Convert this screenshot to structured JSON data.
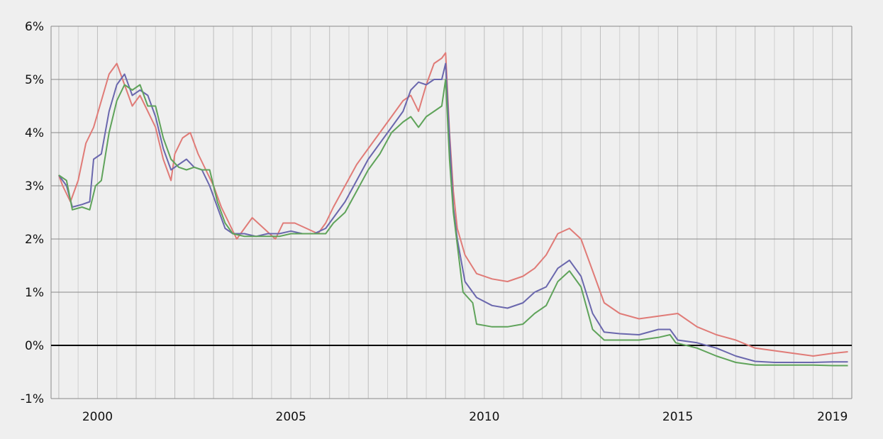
{
  "chart_data": {
    "type": "line",
    "title": "",
    "xlabel": "",
    "ylabel": "",
    "xlim": [
      1998.8,
      2019.5
    ],
    "ylim": [
      -1,
      6
    ],
    "y_ticks": [
      {
        "value": 6,
        "label": "6%"
      },
      {
        "value": 5,
        "label": "5%"
      },
      {
        "value": 4,
        "label": "4%"
      },
      {
        "value": 3,
        "label": "3%"
      },
      {
        "value": 2,
        "label": "2%"
      },
      {
        "value": 1,
        "label": "1%"
      },
      {
        "value": 0,
        "label": "0%"
      },
      {
        "value": -1,
        "label": "-1%"
      }
    ],
    "x_ticks": [
      {
        "value": 2000,
        "label": "2000"
      },
      {
        "value": 2005,
        "label": "2005"
      },
      {
        "value": 2010,
        "label": "2010"
      },
      {
        "value": 2015,
        "label": "2015"
      },
      {
        "value": 2019,
        "label": "2019"
      }
    ],
    "x_minor_gridlines": [
      1999,
      2000,
      2001,
      2002,
      2003,
      2004,
      2005,
      2006,
      2007,
      2008,
      2009,
      2010,
      2011,
      2012,
      2013,
      2014,
      2015,
      2016,
      2017,
      2018,
      2019
    ],
    "grid": true,
    "legend": "none",
    "zero_line_color": "#000000",
    "series": [
      {
        "color": "#e07b77",
        "points": [
          [
            1999.0,
            3.2
          ],
          [
            1999.1,
            3.0
          ],
          [
            1999.3,
            2.7
          ],
          [
            1999.5,
            3.1
          ],
          [
            1999.7,
            3.8
          ],
          [
            1999.9,
            4.1
          ],
          [
            2000.1,
            4.6
          ],
          [
            2000.3,
            5.1
          ],
          [
            2000.5,
            5.3
          ],
          [
            2000.7,
            4.9
          ],
          [
            2000.9,
            4.5
          ],
          [
            2001.1,
            4.7
          ],
          [
            2001.3,
            4.4
          ],
          [
            2001.5,
            4.1
          ],
          [
            2001.7,
            3.5
          ],
          [
            2001.9,
            3.1
          ],
          [
            2002.0,
            3.6
          ],
          [
            2002.2,
            3.9
          ],
          [
            2002.4,
            4.0
          ],
          [
            2002.6,
            3.6
          ],
          [
            2002.8,
            3.3
          ],
          [
            2003.0,
            3.0
          ],
          [
            2003.2,
            2.6
          ],
          [
            2003.4,
            2.3
          ],
          [
            2003.6,
            2.0
          ],
          [
            2003.8,
            2.2
          ],
          [
            2004.0,
            2.4
          ],
          [
            2004.3,
            2.2
          ],
          [
            2004.6,
            2.0
          ],
          [
            2004.8,
            2.3
          ],
          [
            2005.1,
            2.3
          ],
          [
            2005.4,
            2.2
          ],
          [
            2005.7,
            2.1
          ],
          [
            2005.9,
            2.3
          ],
          [
            2006.1,
            2.6
          ],
          [
            2006.4,
            3.0
          ],
          [
            2006.7,
            3.4
          ],
          [
            2007.0,
            3.7
          ],
          [
            2007.3,
            4.0
          ],
          [
            2007.6,
            4.3
          ],
          [
            2007.9,
            4.6
          ],
          [
            2008.1,
            4.7
          ],
          [
            2008.3,
            4.4
          ],
          [
            2008.5,
            4.9
          ],
          [
            2008.7,
            5.3
          ],
          [
            2008.9,
            5.4
          ],
          [
            2009.0,
            5.5
          ],
          [
            2009.1,
            4.0
          ],
          [
            2009.2,
            2.9
          ],
          [
            2009.3,
            2.2
          ],
          [
            2009.5,
            1.7
          ],
          [
            2009.8,
            1.35
          ],
          [
            2010.2,
            1.25
          ],
          [
            2010.6,
            1.2
          ],
          [
            2011.0,
            1.3
          ],
          [
            2011.3,
            1.45
          ],
          [
            2011.6,
            1.7
          ],
          [
            2011.9,
            2.1
          ],
          [
            2012.2,
            2.2
          ],
          [
            2012.5,
            2.0
          ],
          [
            2012.8,
            1.4
          ],
          [
            2013.1,
            0.8
          ],
          [
            2013.5,
            0.6
          ],
          [
            2014.0,
            0.5
          ],
          [
            2014.5,
            0.55
          ],
          [
            2015.0,
            0.6
          ],
          [
            2015.5,
            0.35
          ],
          [
            2016.0,
            0.2
          ],
          [
            2016.5,
            0.1
          ],
          [
            2017.0,
            -0.05
          ],
          [
            2017.5,
            -0.1
          ],
          [
            2018.0,
            -0.15
          ],
          [
            2018.5,
            -0.2
          ],
          [
            2019.0,
            -0.15
          ],
          [
            2019.4,
            -0.12
          ]
        ]
      },
      {
        "color": "#6a67ad",
        "points": [
          [
            1999.0,
            3.2
          ],
          [
            1999.2,
            3.0
          ],
          [
            1999.35,
            2.6
          ],
          [
            1999.6,
            2.65
          ],
          [
            1999.8,
            2.7
          ],
          [
            1999.9,
            3.5
          ],
          [
            2000.1,
            3.6
          ],
          [
            2000.3,
            4.4
          ],
          [
            2000.5,
            4.9
          ],
          [
            2000.7,
            5.1
          ],
          [
            2000.9,
            4.7
          ],
          [
            2001.1,
            4.8
          ],
          [
            2001.3,
            4.7
          ],
          [
            2001.5,
            4.3
          ],
          [
            2001.7,
            3.7
          ],
          [
            2001.9,
            3.3
          ],
          [
            2002.1,
            3.4
          ],
          [
            2002.3,
            3.5
          ],
          [
            2002.5,
            3.35
          ],
          [
            2002.7,
            3.3
          ],
          [
            2002.9,
            3.0
          ],
          [
            2003.1,
            2.6
          ],
          [
            2003.3,
            2.2
          ],
          [
            2003.5,
            2.1
          ],
          [
            2003.8,
            2.1
          ],
          [
            2004.1,
            2.05
          ],
          [
            2004.4,
            2.1
          ],
          [
            2004.7,
            2.1
          ],
          [
            2005.0,
            2.15
          ],
          [
            2005.3,
            2.1
          ],
          [
            2005.6,
            2.1
          ],
          [
            2005.9,
            2.2
          ],
          [
            2006.1,
            2.4
          ],
          [
            2006.4,
            2.7
          ],
          [
            2006.7,
            3.1
          ],
          [
            2007.0,
            3.5
          ],
          [
            2007.3,
            3.8
          ],
          [
            2007.6,
            4.1
          ],
          [
            2007.9,
            4.4
          ],
          [
            2008.1,
            4.8
          ],
          [
            2008.3,
            4.95
          ],
          [
            2008.5,
            4.9
          ],
          [
            2008.7,
            5.0
          ],
          [
            2008.9,
            5.0
          ],
          [
            2009.0,
            5.3
          ],
          [
            2009.1,
            3.9
          ],
          [
            2009.2,
            2.6
          ],
          [
            2009.3,
            2.0
          ],
          [
            2009.5,
            1.2
          ],
          [
            2009.8,
            0.9
          ],
          [
            2010.2,
            0.75
          ],
          [
            2010.6,
            0.7
          ],
          [
            2011.0,
            0.8
          ],
          [
            2011.3,
            1.0
          ],
          [
            2011.6,
            1.1
          ],
          [
            2011.9,
            1.45
          ],
          [
            2012.2,
            1.6
          ],
          [
            2012.5,
            1.3
          ],
          [
            2012.8,
            0.6
          ],
          [
            2013.1,
            0.25
          ],
          [
            2013.5,
            0.22
          ],
          [
            2014.0,
            0.2
          ],
          [
            2014.5,
            0.3
          ],
          [
            2014.8,
            0.3
          ],
          [
            2015.0,
            0.1
          ],
          [
            2015.5,
            0.05
          ],
          [
            2016.0,
            -0.05
          ],
          [
            2016.5,
            -0.2
          ],
          [
            2017.0,
            -0.3
          ],
          [
            2017.5,
            -0.32
          ],
          [
            2018.0,
            -0.32
          ],
          [
            2018.5,
            -0.32
          ],
          [
            2019.0,
            -0.31
          ],
          [
            2019.4,
            -0.31
          ]
        ]
      },
      {
        "color": "#5fa35a",
        "points": [
          [
            1999.0,
            3.2
          ],
          [
            1999.2,
            3.1
          ],
          [
            1999.35,
            2.55
          ],
          [
            1999.6,
            2.6
          ],
          [
            1999.8,
            2.55
          ],
          [
            1999.95,
            3.0
          ],
          [
            2000.1,
            3.1
          ],
          [
            2000.3,
            4.0
          ],
          [
            2000.5,
            4.6
          ],
          [
            2000.7,
            4.9
          ],
          [
            2000.9,
            4.8
          ],
          [
            2001.1,
            4.9
          ],
          [
            2001.3,
            4.5
          ],
          [
            2001.5,
            4.5
          ],
          [
            2001.7,
            3.9
          ],
          [
            2001.9,
            3.5
          ],
          [
            2002.1,
            3.35
          ],
          [
            2002.3,
            3.3
          ],
          [
            2002.5,
            3.35
          ],
          [
            2002.7,
            3.3
          ],
          [
            2002.9,
            3.3
          ],
          [
            2003.1,
            2.7
          ],
          [
            2003.3,
            2.3
          ],
          [
            2003.5,
            2.1
          ],
          [
            2003.8,
            2.05
          ],
          [
            2004.1,
            2.05
          ],
          [
            2004.4,
            2.05
          ],
          [
            2004.7,
            2.05
          ],
          [
            2005.0,
            2.1
          ],
          [
            2005.3,
            2.1
          ],
          [
            2005.6,
            2.1
          ],
          [
            2005.9,
            2.1
          ],
          [
            2006.1,
            2.3
          ],
          [
            2006.4,
            2.5
          ],
          [
            2006.7,
            2.9
          ],
          [
            2007.0,
            3.3
          ],
          [
            2007.3,
            3.6
          ],
          [
            2007.6,
            4.0
          ],
          [
            2007.9,
            4.2
          ],
          [
            2008.1,
            4.3
          ],
          [
            2008.3,
            4.1
          ],
          [
            2008.5,
            4.3
          ],
          [
            2008.7,
            4.4
          ],
          [
            2008.9,
            4.5
          ],
          [
            2009.0,
            5.0
          ],
          [
            2009.1,
            3.5
          ],
          [
            2009.2,
            2.5
          ],
          [
            2009.3,
            1.9
          ],
          [
            2009.45,
            1.0
          ],
          [
            2009.7,
            0.8
          ],
          [
            2009.8,
            0.4
          ],
          [
            2010.2,
            0.35
          ],
          [
            2010.6,
            0.35
          ],
          [
            2011.0,
            0.4
          ],
          [
            2011.3,
            0.6
          ],
          [
            2011.6,
            0.75
          ],
          [
            2011.9,
            1.2
          ],
          [
            2012.2,
            1.4
          ],
          [
            2012.5,
            1.1
          ],
          [
            2012.8,
            0.3
          ],
          [
            2013.1,
            0.1
          ],
          [
            2013.5,
            0.1
          ],
          [
            2014.0,
            0.1
          ],
          [
            2014.5,
            0.15
          ],
          [
            2014.8,
            0.2
          ],
          [
            2014.95,
            0.05
          ],
          [
            2015.5,
            -0.05
          ],
          [
            2016.0,
            -0.2
          ],
          [
            2016.5,
            -0.32
          ],
          [
            2017.0,
            -0.37
          ],
          [
            2017.5,
            -0.37
          ],
          [
            2018.0,
            -0.37
          ],
          [
            2018.5,
            -0.37
          ],
          [
            2019.0,
            -0.38
          ],
          [
            2019.4,
            -0.38
          ]
        ]
      }
    ]
  }
}
